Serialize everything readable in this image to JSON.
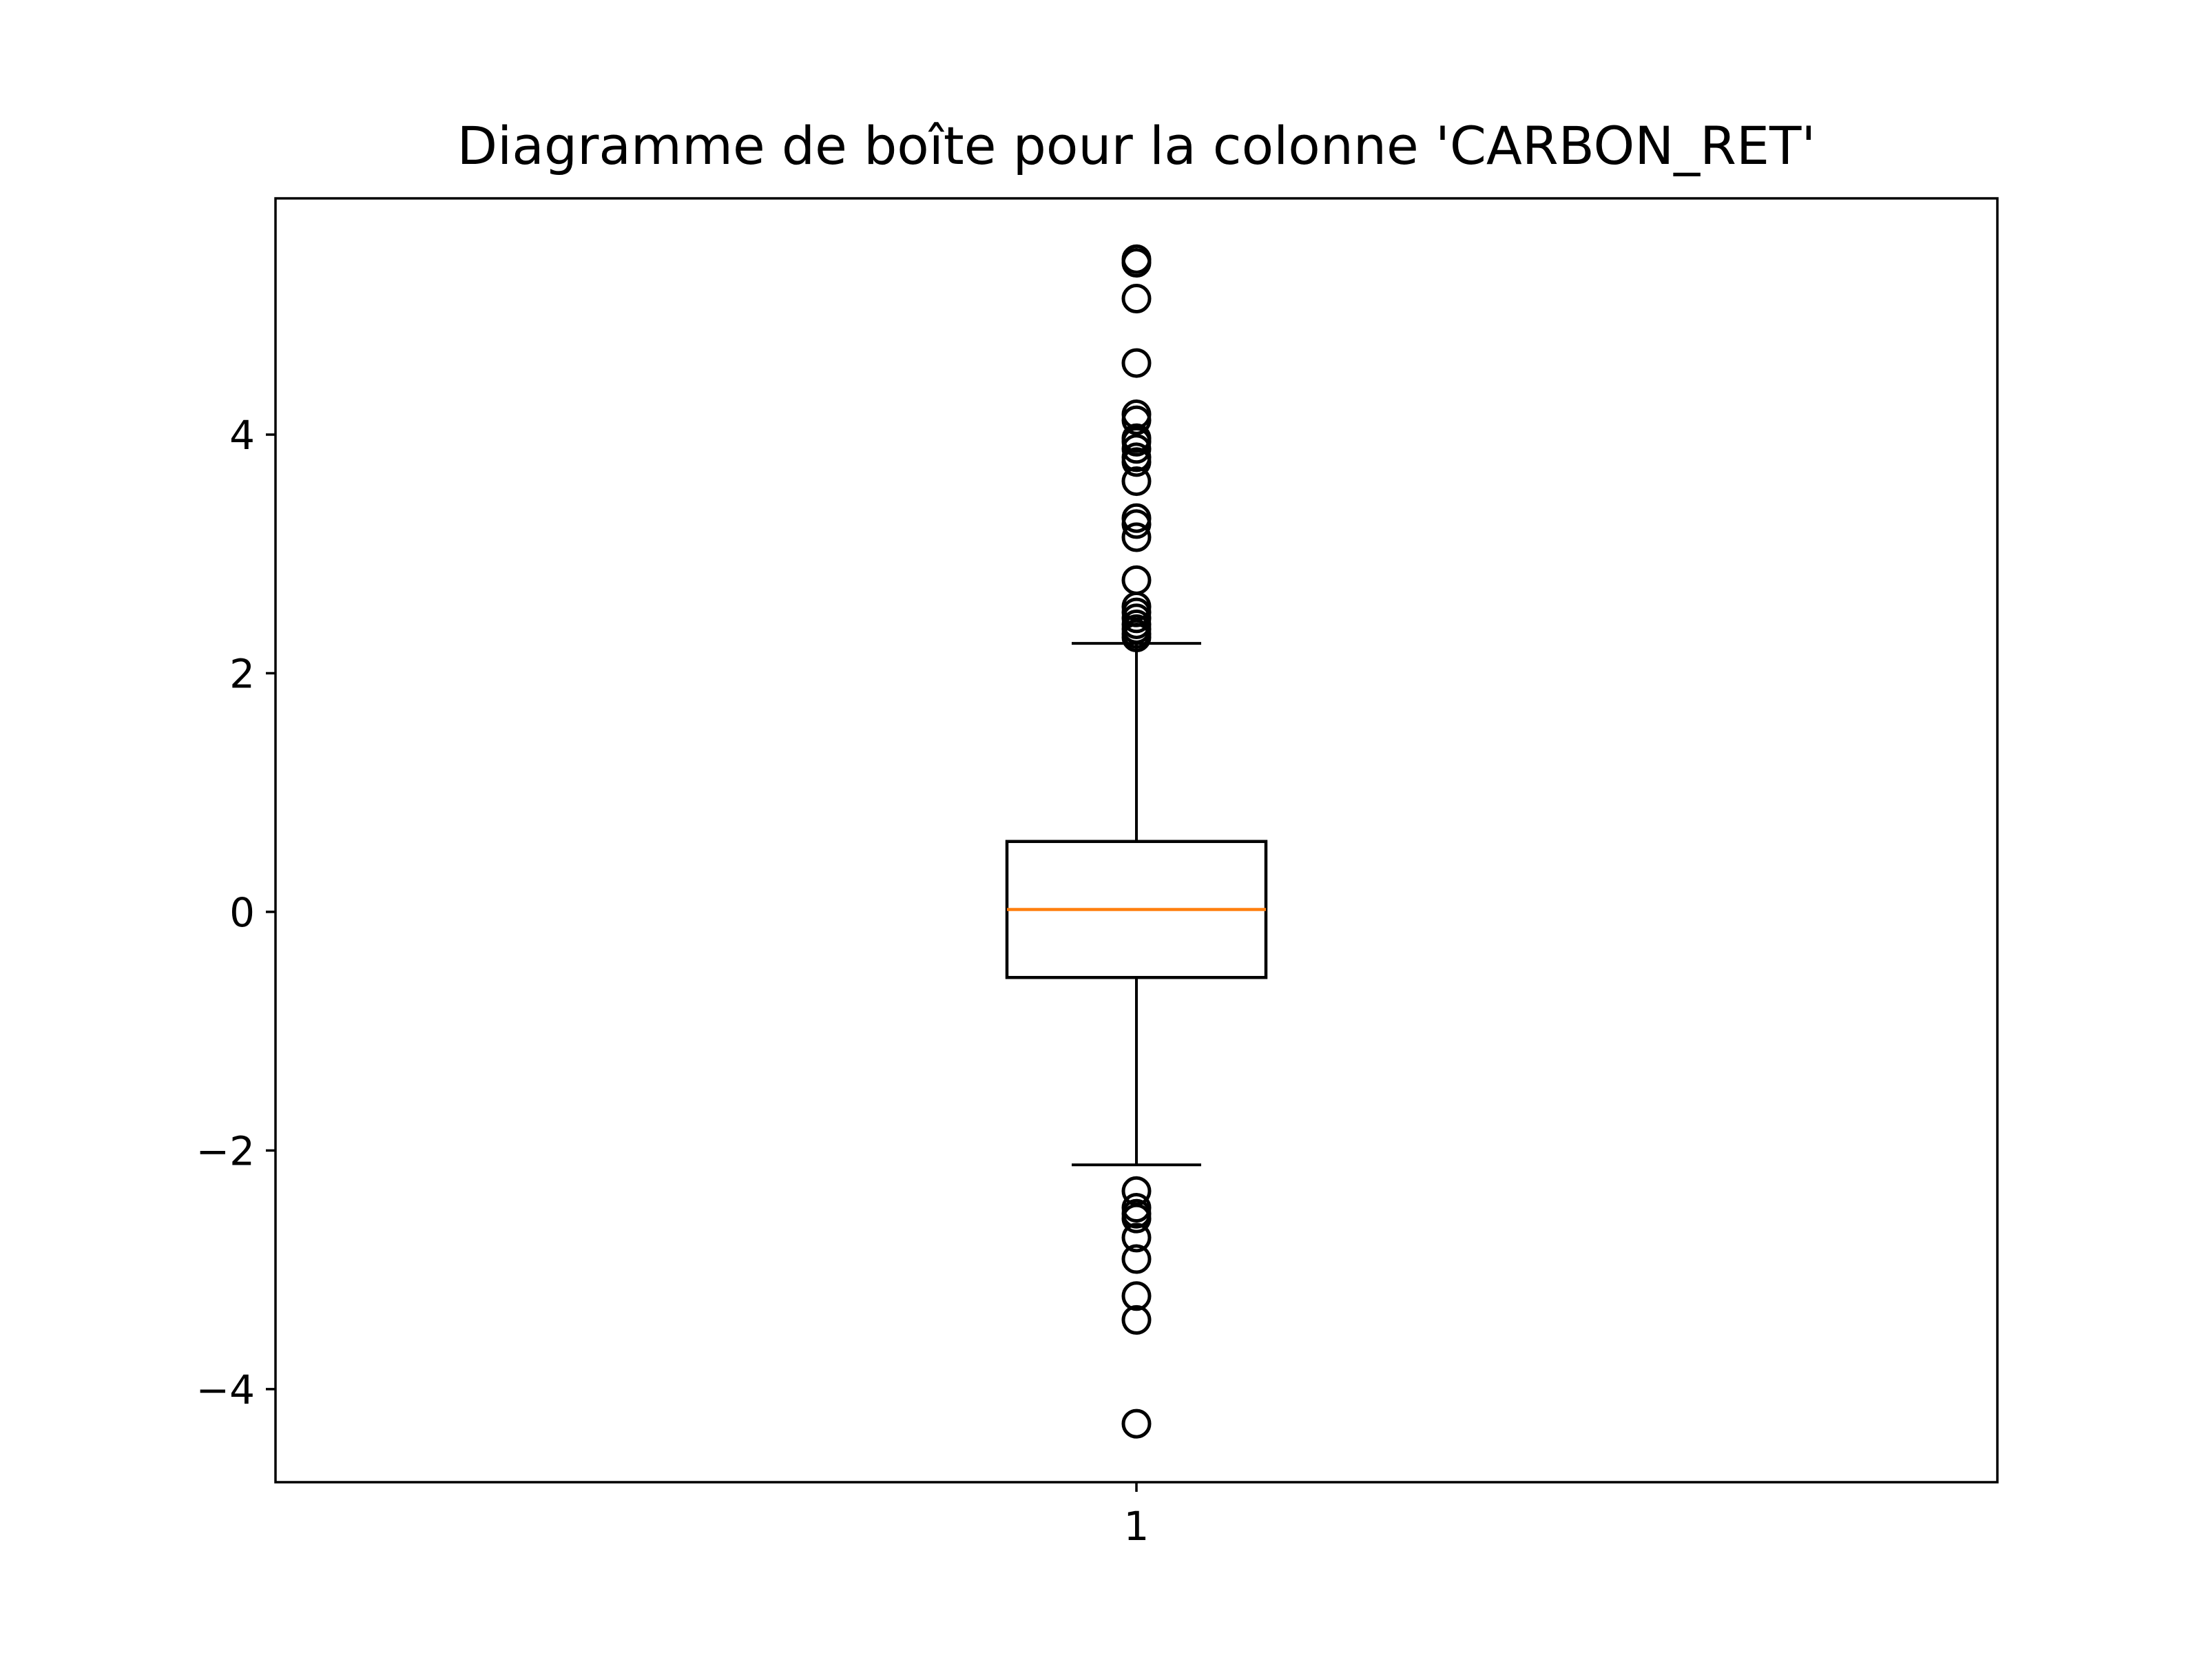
{
  "chart_data": {
    "type": "boxplot",
    "title": "Diagramme de boîte pour la colonne 'CARBON_RET'",
    "xlabel": "",
    "ylabel": "",
    "categories": [
      "1"
    ],
    "ylim": [
      -4.78,
      5.98
    ],
    "y_ticks": [
      {
        "value": -4,
        "label": "−4"
      },
      {
        "value": -2,
        "label": "−2"
      },
      {
        "value": 0,
        "label": "0"
      },
      {
        "value": 2,
        "label": "2"
      },
      {
        "value": 4,
        "label": "4"
      }
    ],
    "grid": false,
    "box": {
      "category": "1",
      "whisker_low": -2.12,
      "q1": -0.55,
      "median": 0.02,
      "q3": 0.59,
      "whisker_high": 2.25
    },
    "outliers": [
      5.47,
      5.44,
      5.14,
      4.6,
      4.17,
      4.12,
      3.97,
      3.94,
      3.88,
      3.81,
      3.77,
      3.61,
      3.3,
      3.25,
      3.14,
      2.78,
      2.56,
      2.51,
      2.46,
      2.41,
      2.37,
      2.33,
      2.3,
      -2.34,
      -2.48,
      -2.53,
      -2.57,
      -2.73,
      -2.91,
      -3.22,
      -3.42,
      -4.29
    ],
    "colors": {
      "box": "#000000",
      "median": "#ff7f0e",
      "background": "#ffffff"
    }
  }
}
